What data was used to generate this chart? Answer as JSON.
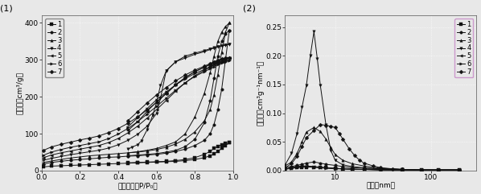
{
  "plot1": {
    "title": "(1)",
    "xlabel": "相对压力（P/P₀）",
    "ylabel": "吸附量（cm³/g）",
    "ylim": [
      0,
      420
    ],
    "xlim": [
      0.0,
      1.0
    ],
    "yticks": [
      0,
      100,
      200,
      300,
      400
    ],
    "xticks": [
      0.0,
      0.2,
      0.4,
      0.6,
      0.8,
      1.0
    ],
    "series": [
      {
        "label": "1",
        "marker": "s",
        "adsorption_x": [
          0.01,
          0.05,
          0.1,
          0.15,
          0.2,
          0.25,
          0.3,
          0.35,
          0.4,
          0.45,
          0.5,
          0.55,
          0.6,
          0.65,
          0.7,
          0.75,
          0.8,
          0.85,
          0.88,
          0.9,
          0.92,
          0.94,
          0.96,
          0.98
        ],
        "adsorption_y": [
          10,
          12,
          13,
          14,
          15,
          16,
          17,
          18,
          19,
          20,
          21,
          22,
          23,
          24,
          25,
          27,
          30,
          35,
          40,
          45,
          52,
          60,
          68,
          75
        ],
        "desorption_x": [
          0.98,
          0.96,
          0.94,
          0.92,
          0.9,
          0.88,
          0.85,
          0.8,
          0.75,
          0.7,
          0.65,
          0.6,
          0.55,
          0.5,
          0.45
        ],
        "desorption_y": [
          75,
          73,
          70,
          66,
          60,
          52,
          44,
          35,
          30,
          27,
          25,
          24,
          23,
          22,
          21
        ]
      },
      {
        "label": "2",
        "marker": "o",
        "adsorption_x": [
          0.01,
          0.05,
          0.1,
          0.15,
          0.2,
          0.25,
          0.3,
          0.35,
          0.4,
          0.45,
          0.5,
          0.55,
          0.6,
          0.65,
          0.7,
          0.75,
          0.8,
          0.85,
          0.88,
          0.9,
          0.92,
          0.94,
          0.96,
          0.98
        ],
        "adsorption_y": [
          18,
          22,
          25,
          28,
          30,
          32,
          34,
          36,
          37,
          39,
          40,
          42,
          44,
          47,
          52,
          58,
          68,
          82,
          100,
          125,
          165,
          220,
          300,
          380
        ],
        "desorption_x": [
          0.98,
          0.96,
          0.94,
          0.92,
          0.9,
          0.88,
          0.85,
          0.8,
          0.75,
          0.7,
          0.65,
          0.6,
          0.55,
          0.5,
          0.45
        ],
        "desorption_y": [
          380,
          370,
          350,
          310,
          250,
          190,
          130,
          85,
          65,
          55,
          50,
          46,
          44,
          42,
          40
        ]
      },
      {
        "label": "3",
        "marker": "^",
        "adsorption_x": [
          0.01,
          0.05,
          0.1,
          0.15,
          0.2,
          0.25,
          0.3,
          0.35,
          0.4,
          0.45,
          0.5,
          0.55,
          0.6,
          0.65,
          0.7,
          0.75,
          0.8,
          0.85,
          0.88,
          0.9,
          0.92,
          0.94,
          0.96,
          0.98
        ],
        "adsorption_y": [
          22,
          26,
          30,
          34,
          37,
          40,
          42,
          44,
          46,
          48,
          50,
          53,
          57,
          63,
          72,
          85,
          105,
          135,
          165,
          205,
          260,
          320,
          375,
          400
        ],
        "desorption_x": [
          0.98,
          0.96,
          0.94,
          0.92,
          0.9,
          0.88,
          0.85,
          0.8,
          0.75,
          0.7,
          0.65,
          0.6,
          0.55,
          0.5,
          0.45
        ],
        "desorption_y": [
          400,
          390,
          375,
          350,
          310,
          265,
          210,
          145,
          100,
          78,
          68,
          60,
          55,
          51,
          48
        ]
      },
      {
        "label": "4",
        "marker": "v",
        "adsorption_x": [
          0.01,
          0.05,
          0.1,
          0.15,
          0.2,
          0.25,
          0.3,
          0.35,
          0.4,
          0.45,
          0.5,
          0.55,
          0.6,
          0.62,
          0.65,
          0.7,
          0.75,
          0.8,
          0.85,
          0.88,
          0.9,
          0.92,
          0.94,
          0.96,
          0.98
        ],
        "adsorption_y": [
          28,
          33,
          38,
          43,
          47,
          51,
          55,
          61,
          70,
          82,
          98,
          120,
          155,
          195,
          270,
          295,
          305,
          315,
          322,
          328,
          332,
          335,
          338,
          340,
          342
        ],
        "desorption_x": [
          0.98,
          0.96,
          0.94,
          0.92,
          0.9,
          0.88,
          0.85,
          0.8,
          0.75,
          0.7,
          0.65,
          0.62,
          0.6,
          0.58,
          0.55,
          0.52,
          0.5,
          0.47,
          0.45
        ],
        "desorption_y": [
          342,
          340,
          338,
          336,
          333,
          330,
          325,
          318,
          310,
          295,
          270,
          230,
          185,
          150,
          110,
          80,
          70,
          63,
          58
        ]
      },
      {
        "label": "5",
        "marker": "<",
        "adsorption_x": [
          0.01,
          0.05,
          0.1,
          0.15,
          0.2,
          0.25,
          0.3,
          0.35,
          0.4,
          0.45,
          0.5,
          0.55,
          0.6,
          0.65,
          0.7,
          0.75,
          0.8,
          0.85,
          0.88,
          0.9,
          0.92,
          0.94,
          0.96,
          0.98
        ],
        "adsorption_y": [
          35,
          42,
          48,
          53,
          58,
          63,
          68,
          76,
          87,
          102,
          120,
          142,
          165,
          190,
          215,
          238,
          257,
          272,
          280,
          287,
          292,
          297,
          302,
          306
        ],
        "desorption_x": [
          0.98,
          0.96,
          0.94,
          0.92,
          0.9,
          0.88,
          0.85,
          0.8,
          0.75,
          0.7,
          0.65,
          0.6,
          0.55,
          0.5,
          0.45
        ],
        "desorption_y": [
          306,
          304,
          302,
          298,
          294,
          288,
          280,
          268,
          252,
          233,
          210,
          186,
          160,
          132,
          108
        ]
      },
      {
        "label": "6",
        "marker": ">",
        "adsorption_x": [
          0.01,
          0.05,
          0.1,
          0.15,
          0.2,
          0.25,
          0.3,
          0.35,
          0.4,
          0.45,
          0.5,
          0.55,
          0.6,
          0.65,
          0.7,
          0.75,
          0.8,
          0.85,
          0.88,
          0.9,
          0.92,
          0.94,
          0.96,
          0.98
        ],
        "adsorption_y": [
          42,
          50,
          57,
          63,
          68,
          73,
          78,
          87,
          99,
          114,
          132,
          153,
          174,
          196,
          218,
          238,
          255,
          268,
          276,
          282,
          287,
          291,
          295,
          298
        ],
        "desorption_x": [
          0.98,
          0.96,
          0.94,
          0.92,
          0.9,
          0.88,
          0.85,
          0.8,
          0.75,
          0.7,
          0.65,
          0.6,
          0.55,
          0.5,
          0.45
        ],
        "desorption_y": [
          298,
          296,
          294,
          291,
          287,
          282,
          274,
          263,
          249,
          232,
          213,
          192,
          168,
          143,
          118
        ]
      },
      {
        "label": "7",
        "marker": "D",
        "adsorption_x": [
          0.01,
          0.05,
          0.1,
          0.15,
          0.2,
          0.25,
          0.3,
          0.35,
          0.4,
          0.45,
          0.5,
          0.55,
          0.6,
          0.65,
          0.7,
          0.75,
          0.8,
          0.85,
          0.88,
          0.9,
          0.92,
          0.94,
          0.96,
          0.98
        ],
        "adsorption_y": [
          55,
          64,
          71,
          77,
          83,
          88,
          94,
          103,
          114,
          128,
          145,
          164,
          185,
          208,
          232,
          252,
          268,
          280,
          287,
          292,
          296,
          300,
          303,
          306
        ],
        "desorption_x": [
          0.98,
          0.96,
          0.94,
          0.92,
          0.9,
          0.88,
          0.85,
          0.8,
          0.75,
          0.7,
          0.65,
          0.6,
          0.55,
          0.5,
          0.45
        ],
        "desorption_y": [
          306,
          304,
          302,
          299,
          295,
          290,
          283,
          272,
          259,
          243,
          225,
          205,
          183,
          159,
          135
        ]
      }
    ]
  },
  "plot2": {
    "title": "(2)",
    "xlabel": "孔径（nm）",
    "ylabel": "孔体积（cm³g⁻¹nm⁻¹）",
    "ylim": [
      0,
      0.27
    ],
    "xlim_log": [
      3,
      300
    ],
    "yticks": [
      0.0,
      0.05,
      0.1,
      0.15,
      0.2,
      0.25
    ],
    "xticks": [
      3,
      10,
      100
    ],
    "xtick_labels": [
      "",
      "10",
      "100"
    ],
    "series": [
      {
        "label": "1",
        "marker": "s",
        "x": [
          3,
          3.5,
          4,
          4.5,
          5,
          6,
          7,
          8,
          10,
          12,
          15,
          20,
          30,
          50,
          80,
          120,
          200
        ],
        "y": [
          0.003,
          0.004,
          0.005,
          0.006,
          0.006,
          0.006,
          0.005,
          0.005,
          0.004,
          0.003,
          0.003,
          0.002,
          0.002,
          0.001,
          0.001,
          0.001,
          0.001
        ]
      },
      {
        "label": "2",
        "marker": "o",
        "x": [
          3,
          3.5,
          4,
          4.5,
          5,
          6,
          7,
          8,
          10,
          12,
          15,
          20,
          30,
          50,
          80,
          120,
          200
        ],
        "y": [
          0.005,
          0.007,
          0.009,
          0.011,
          0.013,
          0.015,
          0.013,
          0.011,
          0.009,
          0.007,
          0.005,
          0.004,
          0.003,
          0.002,
          0.001,
          0.001,
          0.001
        ]
      },
      {
        "label": "3",
        "marker": "^",
        "x": [
          3,
          3.5,
          4,
          4.5,
          5,
          6,
          7,
          8,
          9,
          10,
          12,
          15,
          20,
          30,
          50,
          80,
          120,
          200
        ],
        "y": [
          0.008,
          0.015,
          0.03,
          0.05,
          0.067,
          0.075,
          0.068,
          0.055,
          0.04,
          0.028,
          0.018,
          0.012,
          0.008,
          0.004,
          0.002,
          0.001,
          0.001,
          0.001
        ]
      },
      {
        "label": "4",
        "marker": "v",
        "x": [
          3,
          3.5,
          4,
          4.5,
          5,
          5.5,
          6,
          6.5,
          7,
          8,
          9,
          10,
          12,
          15,
          20,
          30,
          50,
          80,
          120,
          200
        ],
        "y": [
          0.01,
          0.03,
          0.065,
          0.11,
          0.148,
          0.2,
          0.242,
          0.195,
          0.148,
          0.08,
          0.035,
          0.018,
          0.01,
          0.007,
          0.005,
          0.003,
          0.002,
          0.001,
          0.001,
          0.001
        ]
      },
      {
        "label": "5",
        "marker": "<",
        "x": [
          3,
          3.5,
          4,
          4.5,
          5,
          6,
          7,
          8,
          10,
          12,
          15,
          20,
          30,
          50,
          80,
          120,
          200
        ],
        "y": [
          0.003,
          0.005,
          0.007,
          0.008,
          0.008,
          0.007,
          0.006,
          0.005,
          0.004,
          0.003,
          0.002,
          0.002,
          0.001,
          0.001,
          0.001,
          0.001,
          0.001
        ]
      },
      {
        "label": "6",
        "marker": ">",
        "x": [
          3,
          3.5,
          4,
          4.5,
          5,
          6,
          7,
          8,
          10,
          12,
          15,
          20,
          30,
          50,
          80,
          120,
          200
        ],
        "y": [
          0.002,
          0.004,
          0.006,
          0.007,
          0.007,
          0.006,
          0.005,
          0.004,
          0.003,
          0.003,
          0.002,
          0.002,
          0.001,
          0.001,
          0.001,
          0.001,
          0.001
        ]
      },
      {
        "label": "7",
        "marker": "D",
        "x": [
          3,
          3.5,
          4,
          4.5,
          5,
          6,
          7,
          8,
          9,
          10,
          11,
          12,
          14,
          16,
          18,
          20,
          25,
          30,
          40,
          50,
          80,
          120,
          200
        ],
        "y": [
          0.005,
          0.012,
          0.025,
          0.042,
          0.057,
          0.07,
          0.08,
          0.079,
          0.077,
          0.075,
          0.065,
          0.055,
          0.038,
          0.026,
          0.018,
          0.013,
          0.008,
          0.005,
          0.003,
          0.002,
          0.001,
          0.001,
          0.001
        ]
      }
    ]
  },
  "figure_bg": "#e8e8e8",
  "axes_bg": "#e8e8e8",
  "grid_color": "#ffffff",
  "line_color": "#aaaaaa",
  "marker_color": "#111111",
  "marker_size": 2.5,
  "line_width": 0.7,
  "font_size": 6.5,
  "label_font_size": 6.5,
  "title_font_size": 8,
  "legend_font_size": 6
}
